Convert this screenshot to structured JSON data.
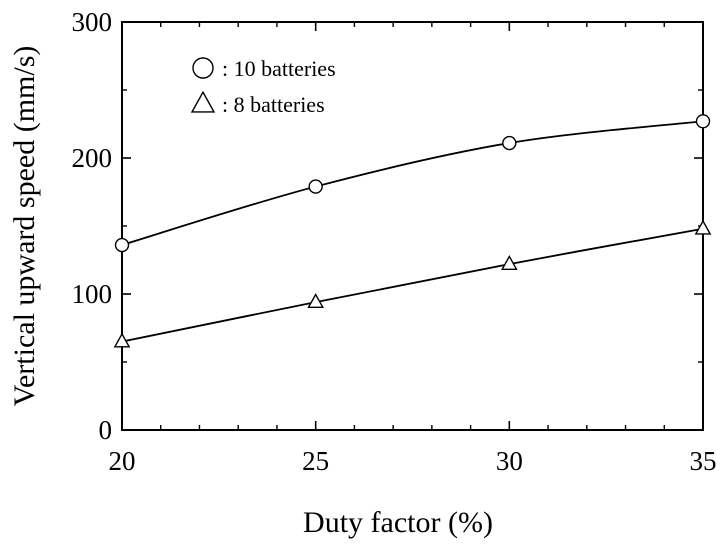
{
  "chart_data": {
    "type": "line",
    "title": "",
    "xlabel": "Duty factor (%)",
    "ylabel": "Vertical upward speed (mm/s)",
    "xlim": [
      20,
      35
    ],
    "ylim": [
      0,
      300
    ],
    "x_ticks": [
      20,
      25,
      30,
      35
    ],
    "x_minor_step": 1,
    "y_ticks": [
      0,
      100,
      200,
      300
    ],
    "y_minor_step": 50,
    "grid": false,
    "legend_position": "top-left",
    "series": [
      {
        "name": ": 10 batteries",
        "marker": "circle",
        "color": "#000000",
        "x": [
          20,
          25,
          30,
          35
        ],
        "y": [
          136,
          179,
          211,
          227
        ]
      },
      {
        "name": ": 8 batteries",
        "marker": "triangle",
        "color": "#000000",
        "x": [
          20,
          25,
          30,
          35
        ],
        "y": [
          65,
          94,
          122,
          148
        ]
      }
    ]
  }
}
